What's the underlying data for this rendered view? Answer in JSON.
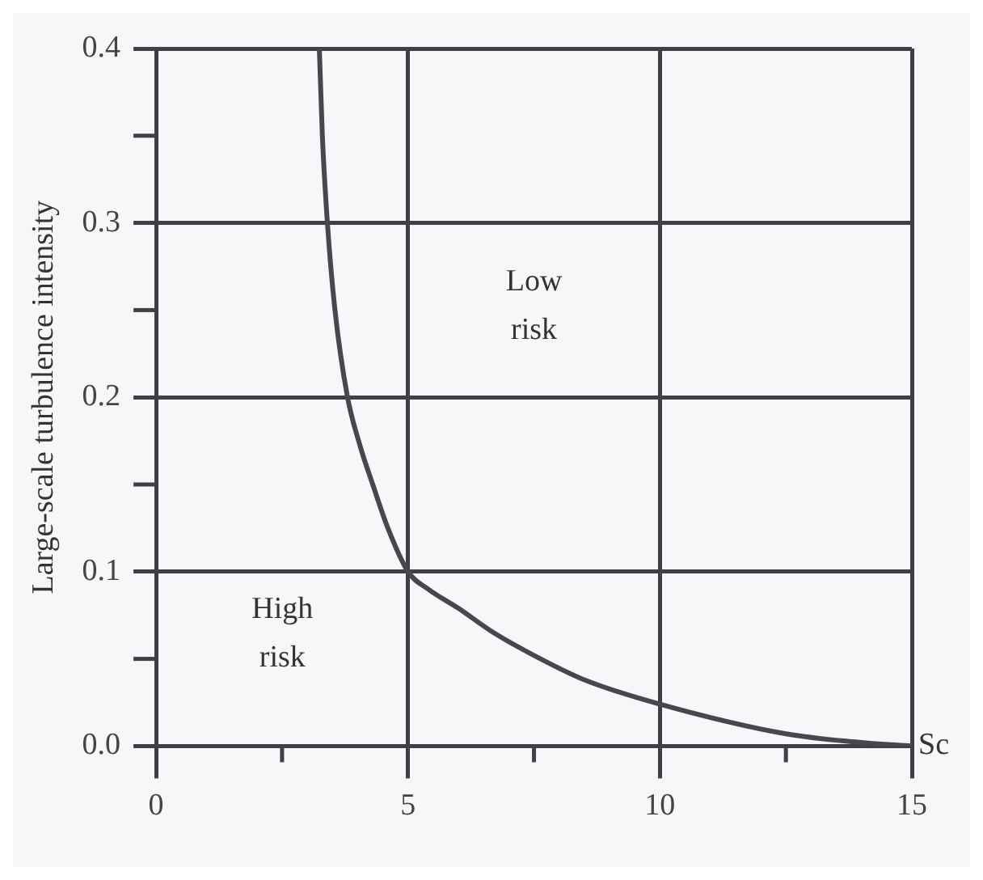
{
  "chart_data": {
    "type": "line",
    "xlabel": "Sc",
    "ylabel": "Large-scale turbulence intensity",
    "series": [
      {
        "color": "#48474f",
        "x": [
          3.24,
          3.3,
          3.4,
          3.55,
          3.8,
          4.05,
          4.3,
          4.6,
          5,
          5.4,
          6,
          6.7,
          7.5,
          8.5,
          10,
          12.5,
          14,
          15
        ],
        "values": [
          0.4,
          0.35,
          0.3,
          0.25,
          0.2,
          0.172,
          0.15,
          0.125,
          0.1,
          0.09,
          0.079,
          0.065,
          0.052,
          0.038,
          0.024,
          0.007,
          0.002,
          0
        ]
      }
    ],
    "xlim": [
      0,
      15
    ],
    "xticks": [
      0,
      {
        "value": 2.5,
        "label": null
      },
      5,
      {
        "value": 7.5,
        "label": null
      },
      10,
      {
        "value": 12.5,
        "label": null
      },
      15
    ],
    "ylim": [
      0,
      0.4
    ],
    "yticks": [
      {
        "value": 0,
        "label": "0.0"
      },
      {
        "value": 0.05,
        "label": null
      },
      {
        "value": 0.1,
        "label": "0.1"
      },
      {
        "value": 0.15,
        "label": null
      },
      {
        "value": 0.2,
        "label": "0.2"
      },
      {
        "value": 0.25,
        "label": null
      },
      {
        "value": 0.3,
        "label": "0.3"
      },
      {
        "value": 0.35,
        "label": null
      },
      {
        "value": 0.4,
        "label": "0.4"
      }
    ],
    "grid": true,
    "legend": false,
    "marker": "none",
    "line_style": "solid",
    "annotations": [
      "Low\nrisk",
      "High\nrisk"
    ]
  }
}
